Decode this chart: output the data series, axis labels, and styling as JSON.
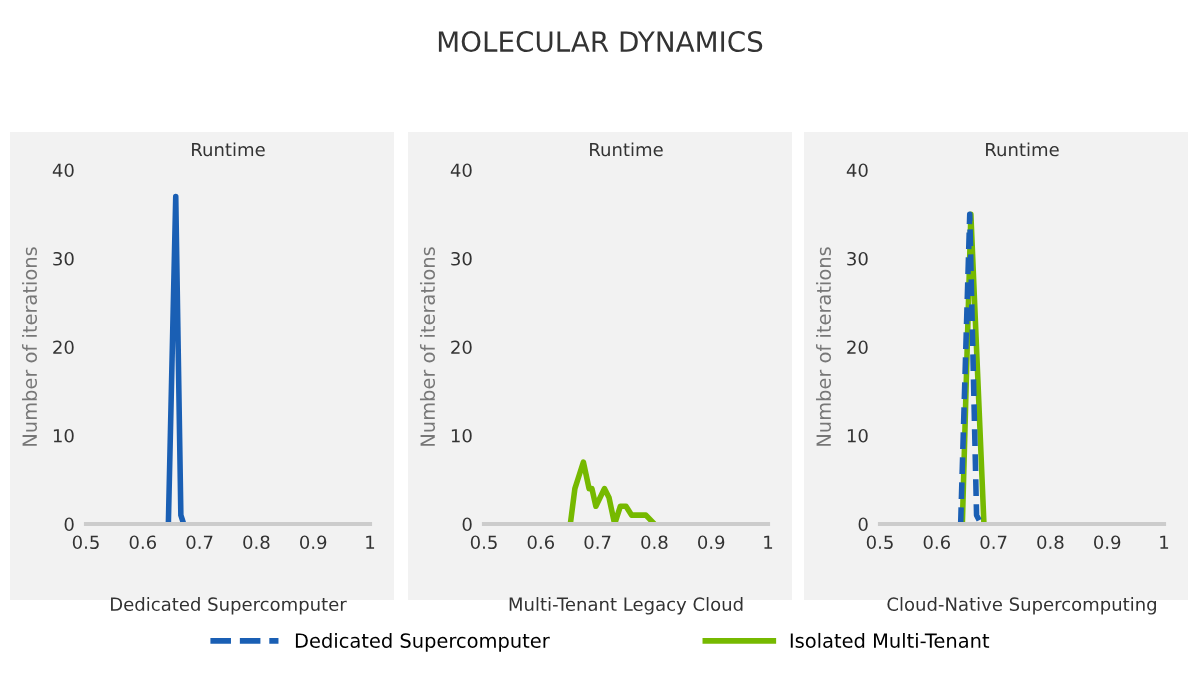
{
  "chart_data": [
    {
      "type": "line",
      "subtitle": "Runtime",
      "xlabel": "Dedicated Supercomputer",
      "ylabel": "Number of iterations",
      "xlim": [
        0.5,
        1
      ],
      "xticks": [
        0.5,
        0.6,
        0.7,
        0.8,
        0.9,
        1
      ],
      "ylim": [
        0,
        40
      ],
      "yticks": [
        0,
        10,
        20,
        30,
        40
      ],
      "grid": false,
      "legend": false,
      "series": [
        {
          "color": "#1a5fb4",
          "line_style": "solid",
          "x": [
            0.645,
            0.658,
            0.667,
            0.672
          ],
          "values": [
            0,
            37,
            1,
            0
          ]
        }
      ]
    },
    {
      "type": "line",
      "title": "MOLECULAR DYNAMICS",
      "subtitle": "Runtime",
      "xlabel": "Multi-Tenant Legacy Cloud",
      "ylabel": "Number of iterations",
      "xlim": [
        0.5,
        1
      ],
      "xticks": [
        0.5,
        0.6,
        0.7,
        0.8,
        0.9,
        1
      ],
      "ylim": [
        0,
        40
      ],
      "yticks": [
        0,
        10,
        20,
        30,
        40
      ],
      "grid": false,
      "legend": false,
      "series": [
        {
          "color": "#76b900",
          "line_style": "solid",
          "x": [
            0.652,
            0.66,
            0.665,
            0.675,
            0.685,
            0.69,
            0.697,
            0.712,
            0.72,
            0.73,
            0.74,
            0.75,
            0.76,
            0.785,
            0.8
          ],
          "values": [
            0,
            4,
            5,
            7,
            4,
            4,
            2,
            4,
            3,
            0,
            2,
            2,
            1,
            1,
            0
          ]
        }
      ]
    },
    {
      "type": "line",
      "subtitle": "Runtime",
      "xlabel": "Cloud-Native Supercomputing",
      "ylabel": "Number of iterations",
      "xlim": [
        0.5,
        1
      ],
      "xticks": [
        0.5,
        0.6,
        0.7,
        0.8,
        0.9,
        1
      ],
      "ylim": [
        0,
        40
      ],
      "yticks": [
        0,
        10,
        20,
        30,
        40
      ],
      "grid": false,
      "legend": "bottom",
      "series": [
        {
          "name": "Isolated Multi-Tenant",
          "color": "#76b900",
          "line_style": "solid",
          "x": [
            0.645,
            0.66,
            0.683
          ],
          "values": [
            0,
            35,
            0
          ]
        },
        {
          "name": "Dedicated Supercomputer",
          "color": "#1a5fb4",
          "line_style": "dashed",
          "x": [
            0.642,
            0.658,
            0.67,
            0.678
          ],
          "values": [
            0,
            35,
            1,
            0
          ]
        }
      ]
    }
  ]
}
